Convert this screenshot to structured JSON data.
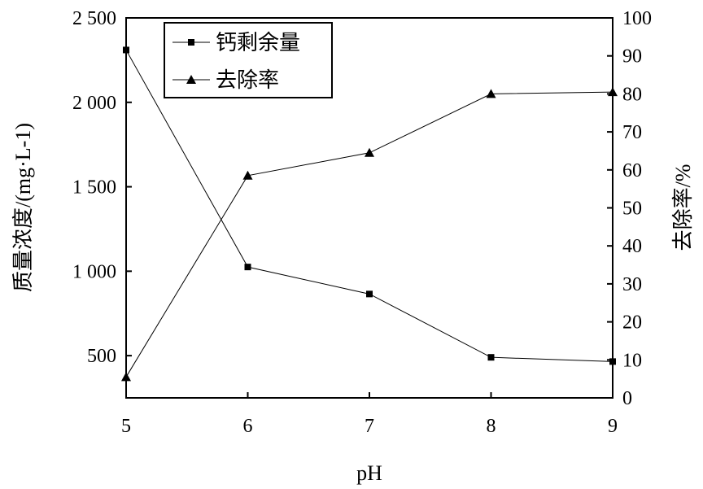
{
  "chart_data": {
    "type": "line",
    "x": [
      5,
      6,
      7,
      8,
      9
    ],
    "xlabel": "pH",
    "xlim": [
      5,
      9
    ],
    "xticks": [
      5,
      6,
      7,
      8,
      9
    ],
    "ylabel_left": "质量浓度/(mg·L-1)",
    "ylim_left": [
      250,
      2500
    ],
    "yticks_left": [
      {
        "value": 500,
        "label": "500"
      },
      {
        "value": 1000,
        "label": "1 000"
      },
      {
        "value": 1500,
        "label": "1 500"
      },
      {
        "value": 2000,
        "label": "2 000"
      },
      {
        "value": 2500,
        "label": "2 500"
      }
    ],
    "ylabel_right": "去除率/%",
    "ylim_right": [
      0,
      100
    ],
    "yticks_right": [
      0,
      10,
      20,
      30,
      40,
      50,
      60,
      70,
      80,
      90,
      100
    ],
    "legend_position": "top-left",
    "grid": false,
    "series": [
      {
        "name": "钙剩余量",
        "axis": "left",
        "marker": "square",
        "values": [
          2310,
          1025,
          865,
          490,
          465
        ]
      },
      {
        "name": "去除率",
        "axis": "right",
        "marker": "triangle",
        "values": [
          5.5,
          58.5,
          64.5,
          80,
          80.5
        ]
      }
    ]
  }
}
